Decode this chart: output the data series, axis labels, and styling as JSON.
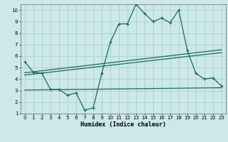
{
  "xlabel": "Humidex (Indice chaleur)",
  "ylabel": "",
  "background_color": "#cce8e8",
  "grid_color": "#aacfcf",
  "line_color": "#1a6b5a",
  "xlim": [
    -0.5,
    23.5
  ],
  "ylim": [
    1,
    10.5
  ],
  "xticks": [
    0,
    1,
    2,
    3,
    4,
    5,
    6,
    7,
    8,
    9,
    10,
    11,
    12,
    13,
    14,
    15,
    16,
    17,
    18,
    19,
    20,
    21,
    22,
    23
  ],
  "yticks": [
    1,
    2,
    3,
    4,
    5,
    6,
    7,
    8,
    9,
    10
  ],
  "curve1_x": [
    0,
    1,
    2,
    3,
    4,
    5,
    6,
    7,
    8,
    9,
    10,
    11,
    12,
    13,
    14,
    15,
    16,
    17,
    18,
    19,
    20,
    21,
    22,
    23
  ],
  "curve1_y": [
    5.5,
    4.6,
    4.5,
    3.1,
    3.1,
    2.6,
    2.8,
    1.3,
    1.5,
    4.5,
    7.2,
    8.8,
    8.8,
    10.5,
    9.7,
    9.0,
    9.3,
    8.9,
    10.0,
    6.5,
    4.5,
    4.0,
    4.1,
    3.4
  ],
  "line1_x": [
    0,
    23
  ],
  "line1_y": [
    4.55,
    6.55
  ],
  "line2_x": [
    0,
    23
  ],
  "line2_y": [
    4.35,
    6.3
  ],
  "line3_x": [
    0,
    23
  ],
  "line3_y": [
    3.05,
    3.25
  ]
}
